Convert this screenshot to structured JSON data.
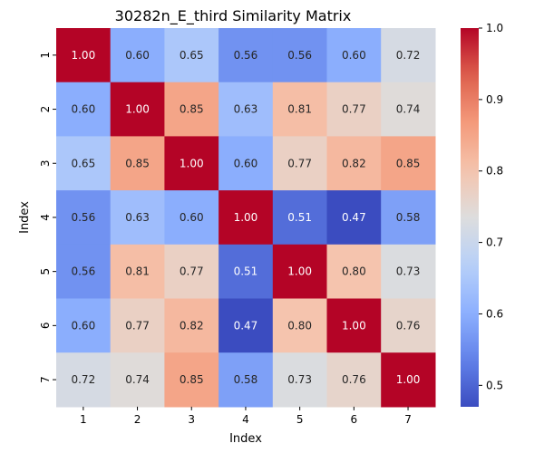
{
  "chart_data": {
    "type": "heatmap",
    "title": "30282n_E_third Similarity Matrix",
    "xlabel": "Index",
    "ylabel": "Index",
    "x_categories": [
      "1",
      "2",
      "3",
      "4",
      "5",
      "6",
      "7"
    ],
    "y_categories": [
      "1",
      "2",
      "3",
      "4",
      "5",
      "6",
      "7"
    ],
    "values": [
      [
        1.0,
        0.6,
        0.65,
        0.56,
        0.56,
        0.6,
        0.72
      ],
      [
        0.6,
        1.0,
        0.85,
        0.63,
        0.81,
        0.77,
        0.74
      ],
      [
        0.65,
        0.85,
        1.0,
        0.6,
        0.77,
        0.82,
        0.85
      ],
      [
        0.56,
        0.63,
        0.6,
        1.0,
        0.51,
        0.47,
        0.58
      ],
      [
        0.56,
        0.81,
        0.77,
        0.51,
        1.0,
        0.8,
        0.73
      ],
      [
        0.6,
        0.77,
        0.82,
        0.47,
        0.8,
        1.0,
        0.76
      ],
      [
        0.72,
        0.74,
        0.85,
        0.58,
        0.73,
        0.76,
        1.0
      ]
    ],
    "value_labels": [
      [
        "1.00",
        "0.60",
        "0.65",
        "0.56",
        "0.56",
        "0.60",
        "0.72"
      ],
      [
        "0.60",
        "1.00",
        "0.85",
        "0.63",
        "0.81",
        "0.77",
        "0.74"
      ],
      [
        "0.65",
        "0.85",
        "1.00",
        "0.60",
        "0.77",
        "0.82",
        "0.85"
      ],
      [
        "0.56",
        "0.63",
        "0.60",
        "1.00",
        "0.51",
        "0.47",
        "0.58"
      ],
      [
        "0.56",
        "0.81",
        "0.77",
        "0.51",
        "1.00",
        "0.80",
        "0.73"
      ],
      [
        "0.60",
        "0.77",
        "0.82",
        "0.47",
        "0.80",
        "1.00",
        "0.76"
      ],
      [
        "0.72",
        "0.74",
        "0.85",
        "0.58",
        "0.73",
        "0.76",
        "1.00"
      ]
    ],
    "colorscale": "coolwarm",
    "color_range": [
      0.47,
      1.0
    ],
    "colorbar_ticks": [
      "0.5",
      "0.6",
      "0.7",
      "0.8",
      "0.9",
      "1.0"
    ],
    "colorbar_tick_values": [
      0.5,
      0.6,
      0.7,
      0.8,
      0.9,
      1.0
    ],
    "annotation_text_colors": {
      "dark_cells": "#ffffff",
      "light_cells": "#262626"
    }
  }
}
